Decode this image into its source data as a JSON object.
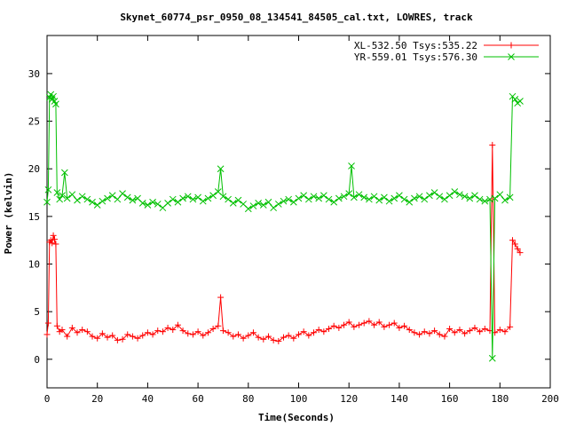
{
  "chart_data": {
    "type": "line",
    "title": "Skynet_60774_psr_0950_08_134541_84505_cal.txt, LOWRES, track",
    "xlabel": "Time(Seconds)",
    "ylabel": "Power (kelvin)",
    "xlim": [
      0,
      200
    ],
    "ylim": [
      -3,
      34
    ],
    "xticks": [
      0,
      20,
      40,
      60,
      80,
      100,
      120,
      140,
      160,
      180,
      200
    ],
    "yticks": [
      0,
      5,
      10,
      15,
      20,
      25,
      30
    ],
    "grid": false,
    "legend_position": "top-right",
    "series": [
      {
        "name": "XL-532.50 Tsys:535.22",
        "color": "#ff0000",
        "marker": "plus",
        "points": [
          [
            0,
            2.6
          ],
          [
            0.5,
            3.8
          ],
          [
            1,
            12.3
          ],
          [
            1.5,
            12.5
          ],
          [
            2,
            12.2
          ],
          [
            2.5,
            13.0
          ],
          [
            3,
            12.6
          ],
          [
            3.5,
            12.1
          ],
          [
            4,
            3.5
          ],
          [
            5,
            2.9
          ],
          [
            6,
            3.1
          ],
          [
            8,
            2.4
          ],
          [
            10,
            3.3
          ],
          [
            12,
            2.8
          ],
          [
            14,
            3.1
          ],
          [
            16,
            2.9
          ],
          [
            18,
            2.4
          ],
          [
            20,
            2.2
          ],
          [
            22,
            2.7
          ],
          [
            24,
            2.3
          ],
          [
            26,
            2.5
          ],
          [
            28,
            2.0
          ],
          [
            30,
            2.1
          ],
          [
            32,
            2.6
          ],
          [
            34,
            2.4
          ],
          [
            36,
            2.2
          ],
          [
            38,
            2.5
          ],
          [
            40,
            2.8
          ],
          [
            42,
            2.6
          ],
          [
            44,
            3.0
          ],
          [
            46,
            2.9
          ],
          [
            48,
            3.3
          ],
          [
            50,
            3.1
          ],
          [
            52,
            3.6
          ],
          [
            54,
            3.0
          ],
          [
            56,
            2.7
          ],
          [
            58,
            2.6
          ],
          [
            60,
            2.9
          ],
          [
            62,
            2.5
          ],
          [
            64,
            2.8
          ],
          [
            66,
            3.2
          ],
          [
            68,
            3.5
          ],
          [
            69,
            6.5
          ],
          [
            70,
            3.0
          ],
          [
            72,
            2.8
          ],
          [
            74,
            2.4
          ],
          [
            76,
            2.6
          ],
          [
            78,
            2.2
          ],
          [
            80,
            2.5
          ],
          [
            82,
            2.8
          ],
          [
            84,
            2.3
          ],
          [
            86,
            2.1
          ],
          [
            88,
            2.4
          ],
          [
            90,
            2.0
          ],
          [
            92,
            1.9
          ],
          [
            94,
            2.3
          ],
          [
            96,
            2.5
          ],
          [
            98,
            2.2
          ],
          [
            100,
            2.6
          ],
          [
            102,
            2.9
          ],
          [
            104,
            2.5
          ],
          [
            106,
            2.8
          ],
          [
            108,
            3.1
          ],
          [
            110,
            2.9
          ],
          [
            112,
            3.2
          ],
          [
            114,
            3.5
          ],
          [
            116,
            3.3
          ],
          [
            118,
            3.6
          ],
          [
            120,
            3.9
          ],
          [
            122,
            3.4
          ],
          [
            124,
            3.6
          ],
          [
            126,
            3.8
          ],
          [
            128,
            4.0
          ],
          [
            130,
            3.6
          ],
          [
            132,
            3.9
          ],
          [
            134,
            3.4
          ],
          [
            136,
            3.6
          ],
          [
            138,
            3.8
          ],
          [
            140,
            3.3
          ],
          [
            142,
            3.5
          ],
          [
            144,
            3.1
          ],
          [
            146,
            2.8
          ],
          [
            148,
            2.6
          ],
          [
            150,
            2.9
          ],
          [
            152,
            2.7
          ],
          [
            154,
            3.0
          ],
          [
            156,
            2.6
          ],
          [
            158,
            2.4
          ],
          [
            160,
            3.2
          ],
          [
            162,
            2.8
          ],
          [
            164,
            3.1
          ],
          [
            166,
            2.7
          ],
          [
            168,
            3.0
          ],
          [
            170,
            3.3
          ],
          [
            172,
            2.9
          ],
          [
            174,
            3.2
          ],
          [
            176,
            3.0
          ],
          [
            177,
            22.5
          ],
          [
            178,
            2.8
          ],
          [
            180,
            3.1
          ],
          [
            182,
            2.9
          ],
          [
            184,
            3.4
          ],
          [
            185,
            12.5
          ],
          [
            186,
            12.1
          ],
          [
            187,
            11.6
          ],
          [
            188,
            11.2
          ]
        ]
      },
      {
        "name": "YR-559.01 Tsys:576.30",
        "color": "#00c000",
        "marker": "cross",
        "points": [
          [
            0,
            16.5
          ],
          [
            0.5,
            17.8
          ],
          [
            1,
            27.5
          ],
          [
            1.5,
            27.8
          ],
          [
            2,
            27.3
          ],
          [
            2.5,
            27.6
          ],
          [
            3,
            27.1
          ],
          [
            3.5,
            26.8
          ],
          [
            4,
            17.5
          ],
          [
            5,
            16.8
          ],
          [
            6,
            17.2
          ],
          [
            7,
            19.6
          ],
          [
            8,
            16.9
          ],
          [
            10,
            17.3
          ],
          [
            12,
            16.7
          ],
          [
            14,
            17.1
          ],
          [
            16,
            16.8
          ],
          [
            18,
            16.5
          ],
          [
            20,
            16.2
          ],
          [
            22,
            16.6
          ],
          [
            24,
            16.9
          ],
          [
            26,
            17.2
          ],
          [
            28,
            16.8
          ],
          [
            30,
            17.4
          ],
          [
            32,
            17.0
          ],
          [
            34,
            16.7
          ],
          [
            36,
            16.9
          ],
          [
            38,
            16.4
          ],
          [
            40,
            16.2
          ],
          [
            42,
            16.5
          ],
          [
            44,
            16.3
          ],
          [
            46,
            15.9
          ],
          [
            48,
            16.4
          ],
          [
            50,
            16.8
          ],
          [
            52,
            16.5
          ],
          [
            54,
            16.9
          ],
          [
            56,
            17.1
          ],
          [
            58,
            16.8
          ],
          [
            60,
            17.0
          ],
          [
            62,
            16.6
          ],
          [
            64,
            16.9
          ],
          [
            66,
            17.2
          ],
          [
            68,
            17.6
          ],
          [
            69,
            20.0
          ],
          [
            70,
            17.1
          ],
          [
            72,
            16.8
          ],
          [
            74,
            16.4
          ],
          [
            76,
            16.7
          ],
          [
            78,
            16.3
          ],
          [
            80,
            15.8
          ],
          [
            82,
            16.1
          ],
          [
            84,
            16.4
          ],
          [
            86,
            16.2
          ],
          [
            88,
            16.5
          ],
          [
            90,
            15.9
          ],
          [
            92,
            16.3
          ],
          [
            94,
            16.6
          ],
          [
            96,
            16.8
          ],
          [
            98,
            16.5
          ],
          [
            100,
            16.9
          ],
          [
            102,
            17.2
          ],
          [
            104,
            16.8
          ],
          [
            106,
            17.1
          ],
          [
            108,
            16.9
          ],
          [
            110,
            17.2
          ],
          [
            112,
            16.8
          ],
          [
            114,
            16.5
          ],
          [
            116,
            16.9
          ],
          [
            118,
            17.1
          ],
          [
            120,
            17.4
          ],
          [
            121,
            20.3
          ],
          [
            122,
            17.0
          ],
          [
            124,
            17.3
          ],
          [
            126,
            17.0
          ],
          [
            128,
            16.8
          ],
          [
            130,
            17.1
          ],
          [
            132,
            16.7
          ],
          [
            134,
            17.0
          ],
          [
            136,
            16.6
          ],
          [
            138,
            16.9
          ],
          [
            140,
            17.2
          ],
          [
            142,
            16.8
          ],
          [
            144,
            16.5
          ],
          [
            146,
            16.9
          ],
          [
            148,
            17.1
          ],
          [
            150,
            16.8
          ],
          [
            152,
            17.2
          ],
          [
            154,
            17.5
          ],
          [
            156,
            17.1
          ],
          [
            158,
            16.8
          ],
          [
            160,
            17.2
          ],
          [
            162,
            17.6
          ],
          [
            164,
            17.3
          ],
          [
            166,
            17.1
          ],
          [
            168,
            16.9
          ],
          [
            170,
            17.2
          ],
          [
            172,
            16.8
          ],
          [
            174,
            16.6
          ],
          [
            176,
            16.8
          ],
          [
            177,
            0.1
          ],
          [
            178,
            16.9
          ],
          [
            180,
            17.3
          ],
          [
            182,
            16.7
          ],
          [
            184,
            17.0
          ],
          [
            185,
            27.6
          ],
          [
            186,
            27.3
          ],
          [
            187,
            26.9
          ],
          [
            188,
            27.1
          ]
        ]
      }
    ]
  }
}
